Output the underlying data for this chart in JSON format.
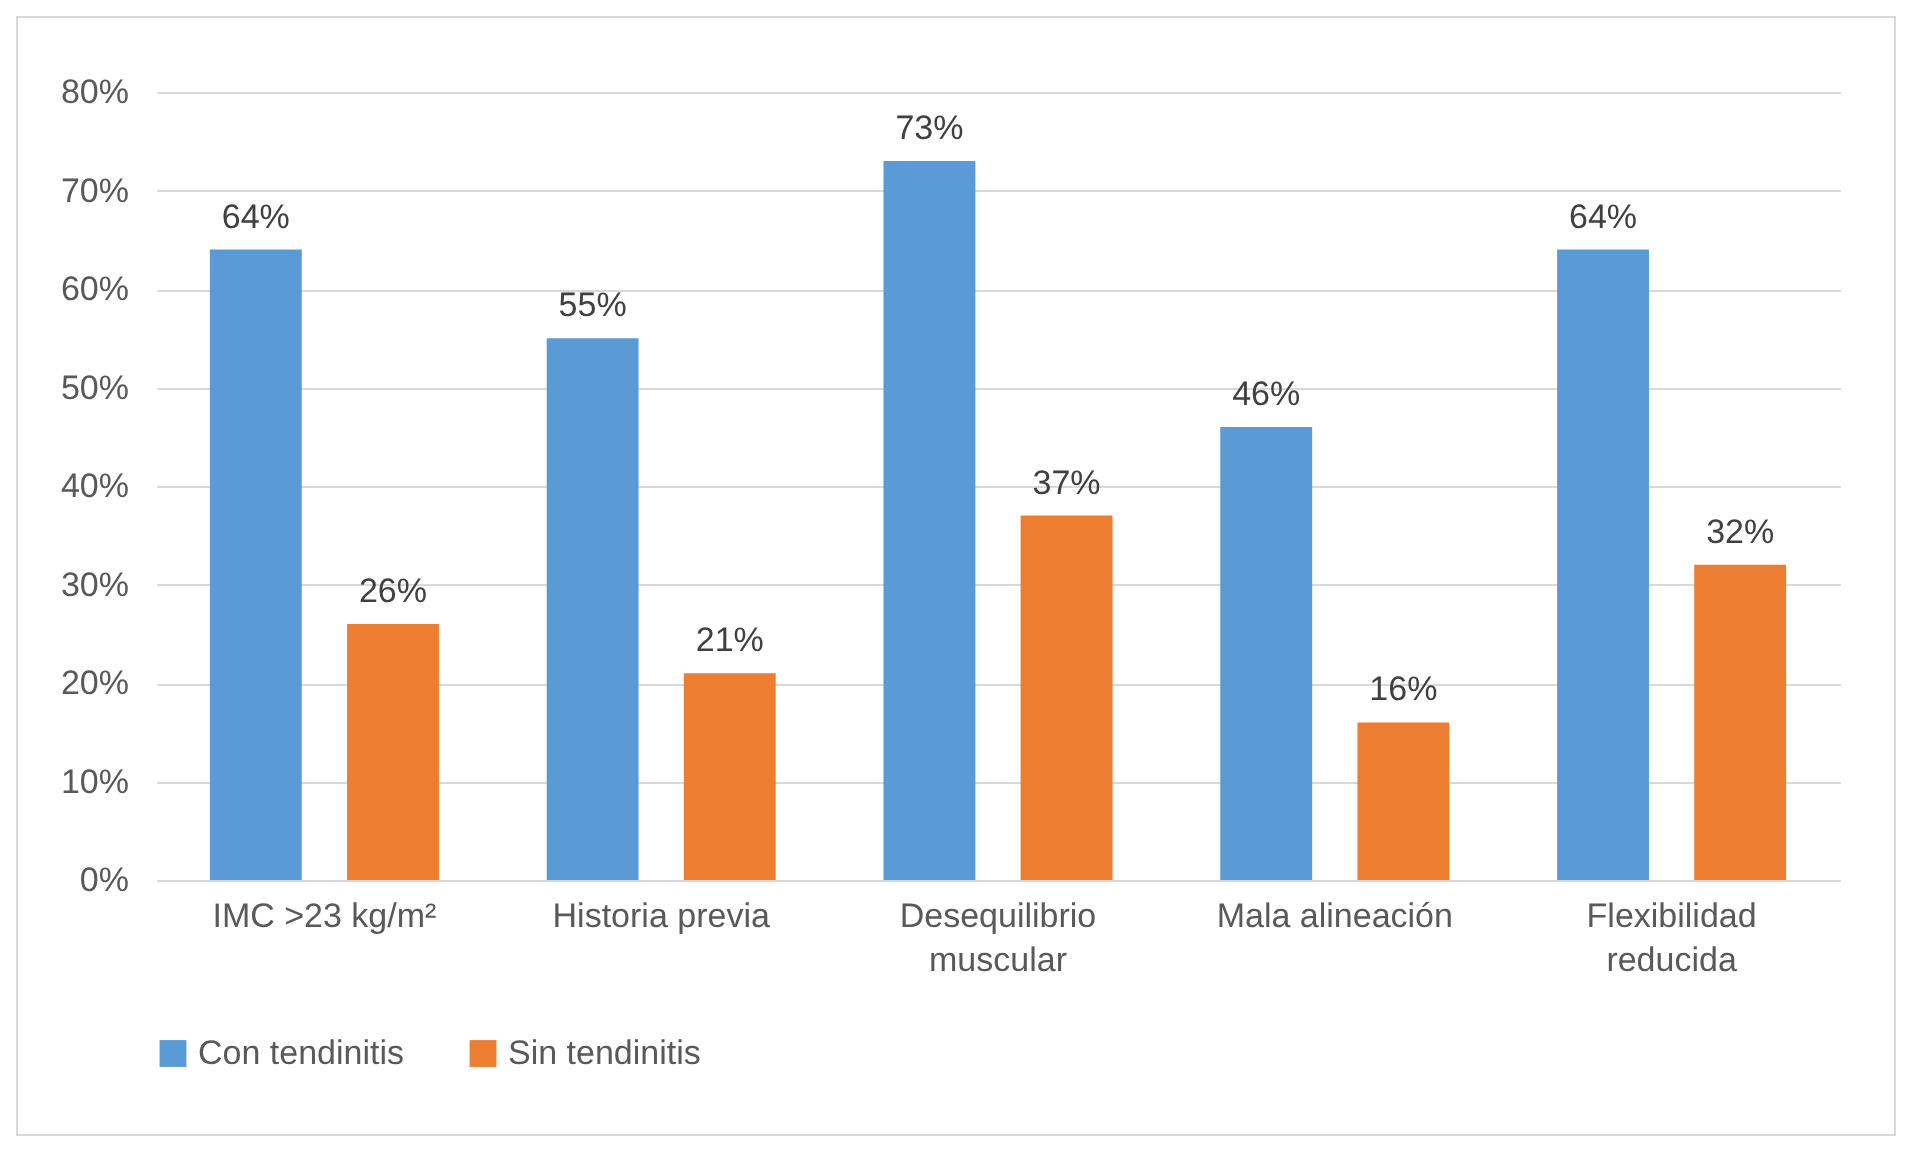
{
  "chart_data": {
    "type": "bar",
    "categories": [
      "IMC >23 kg/m²",
      "Historia previa",
      "Desequilibrio muscular",
      "Mala alineación",
      "Flexibilidad reducida"
    ],
    "series": [
      {
        "name": "Con tendinitis",
        "color": "#5b9bd5",
        "values": [
          64,
          55,
          73,
          46,
          64
        ],
        "value_labels": [
          "64%",
          "55%",
          "73%",
          "46%",
          "64%"
        ]
      },
      {
        "name": "Sin tendinitis",
        "color": "#ed7d31",
        "values": [
          26,
          21,
          37,
          16,
          32
        ],
        "value_labels": [
          "26%",
          "21%",
          "37%",
          "16%",
          "32%"
        ]
      }
    ],
    "ylim": [
      0,
      80
    ],
    "yticks": [
      {
        "value": 0,
        "label": "0%"
      },
      {
        "value": 10,
        "label": "10%"
      },
      {
        "value": 20,
        "label": "20%"
      },
      {
        "value": 30,
        "label": "30%"
      },
      {
        "value": 40,
        "label": "40%"
      },
      {
        "value": 50,
        "label": "50%"
      },
      {
        "value": 60,
        "label": "60%"
      },
      {
        "value": 70,
        "label": "70%"
      },
      {
        "value": 80,
        "label": "80%"
      }
    ],
    "grid": "y",
    "legend": "bottom"
  }
}
